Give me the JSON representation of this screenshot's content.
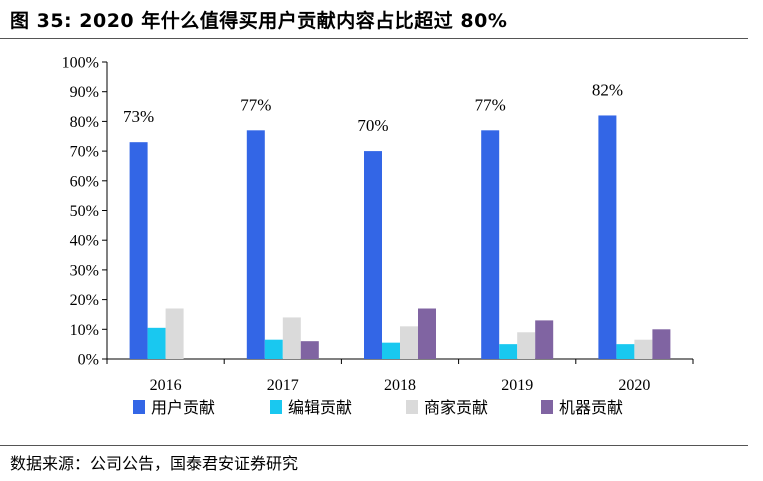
{
  "figure": {
    "title": "图 35:  2020 年什么值得买用户贡献内容占比超过 80%",
    "source": "数据来源：公司公告，国泰君安证券研究"
  },
  "chart_data": {
    "type": "bar",
    "categories": [
      "2016",
      "2017",
      "2018",
      "2019",
      "2020"
    ],
    "ylim": [
      0,
      100
    ],
    "yticks": [
      "0%",
      "10%",
      "20%",
      "30%",
      "40%",
      "50%",
      "60%",
      "70%",
      "80%",
      "90%",
      "100%"
    ],
    "grid": false,
    "legend": "bottom",
    "series": [
      {
        "name": "用户贡献",
        "color": "#3366e6",
        "values": [
          73,
          77,
          70,
          77,
          82
        ],
        "labels": [
          "73%",
          "77%",
          "70%",
          "77%",
          "82%"
        ]
      },
      {
        "name": "编辑贡献",
        "color": "#19c8f0",
        "values": [
          10.5,
          6.5,
          5.5,
          5,
          5
        ]
      },
      {
        "name": "商家贡献",
        "color": "#dadada",
        "values": [
          17,
          14,
          11,
          9,
          6.5
        ]
      },
      {
        "name": "机器贡献",
        "color": "#8064a2",
        "values": [
          0,
          6,
          17,
          13,
          10
        ]
      }
    ]
  }
}
